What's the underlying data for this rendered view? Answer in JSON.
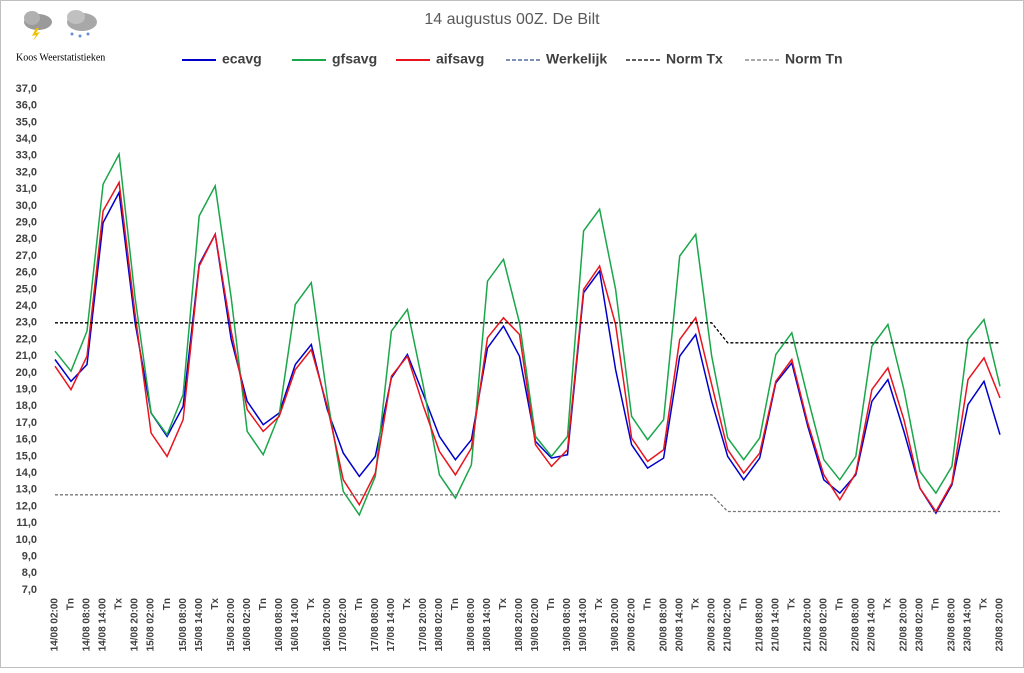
{
  "brand": "Koos Weerstatistieken",
  "chart_data": {
    "type": "line",
    "title": "14 augustus 00Z. De Bilt",
    "categories": [
      "14/08 02:00",
      "Tn",
      "14/08 08:00",
      "14/08 14:00",
      "Tx",
      "14/08 20:00",
      "15/08 02:00",
      "Tn",
      "15/08 08:00",
      "15/08 14:00",
      "Tx",
      "15/08 20:00",
      "16/08 02:00",
      "Tn",
      "16/08 08:00",
      "16/08 14:00",
      "Tx",
      "16/08 20:00",
      "17/08 02:00",
      "Tn",
      "17/08 08:00",
      "17/08 14:00",
      "Tx",
      "17/08 20:00",
      "18/08 02:00",
      "Tn",
      "18/08 08:00",
      "18/08 14:00",
      "Tx",
      "18/08 20:00",
      "19/08 02:00",
      "Tn",
      "19/08 08:00",
      "19/08 14:00",
      "Tx",
      "19/08 20:00",
      "20/08 02:00",
      "Tn",
      "20/08 08:00",
      "20/08 14:00",
      "Tx",
      "20/08 20:00",
      "21/08 02:00",
      "Tn",
      "21/08 08:00",
      "21/08 14:00",
      "Tx",
      "21/08 20:00",
      "22/08 02:00",
      "Tn",
      "22/08 08:00",
      "22/08 14:00",
      "Tx",
      "22/08 20:00",
      "23/08 02:00",
      "Tn",
      "23/08 08:00",
      "23/08 14:00",
      "Tx",
      "23/08 20:00"
    ],
    "series": [
      {
        "name": "ecavg",
        "color": "#0000cc",
        "dashed": false,
        "values": [
          20.8,
          19.5,
          20.5,
          29.0,
          30.8,
          23.0,
          17.6,
          16.2,
          18.0,
          26.5,
          28.3,
          22.0,
          18.3,
          16.9,
          17.6,
          20.5,
          21.7,
          17.8,
          15.2,
          13.8,
          15.0,
          19.7,
          21.1,
          18.7,
          16.2,
          14.8,
          16.0,
          21.5,
          22.8,
          21.0,
          15.9,
          14.9,
          15.1,
          24.8,
          26.1,
          20.2,
          15.7,
          14.3,
          14.9,
          21.0,
          22.3,
          18.3,
          15.0,
          13.6,
          14.9,
          19.4,
          20.6,
          16.8,
          13.6,
          12.8,
          13.9,
          18.3,
          19.6,
          16.5,
          13.1,
          11.6,
          13.3,
          18.1,
          19.5,
          16.3
        ]
      },
      {
        "name": "gfsavg",
        "color": "#1aa64a",
        "dashed": false,
        "values": [
          21.3,
          20.1,
          22.5,
          31.3,
          33.1,
          24.5,
          17.6,
          16.3,
          18.7,
          29.4,
          31.2,
          24.5,
          16.5,
          15.1,
          17.5,
          24.1,
          25.4,
          18.5,
          12.9,
          11.5,
          13.8,
          22.5,
          23.8,
          19.2,
          13.9,
          12.5,
          14.5,
          25.5,
          26.8,
          23.0,
          16.2,
          15.0,
          16.2,
          28.5,
          29.8,
          25.0,
          17.4,
          16.0,
          17.2,
          27.0,
          28.3,
          21.0,
          16.1,
          14.8,
          16.1,
          21.1,
          22.4,
          18.5,
          14.8,
          13.6,
          15.0,
          21.6,
          22.9,
          19.0,
          14.1,
          12.8,
          14.4,
          22.0,
          23.2,
          19.2
        ]
      },
      {
        "name": "aifsavg",
        "color": "#e8141e",
        "dashed": false,
        "values": [
          20.4,
          19.0,
          21.0,
          29.7,
          31.4,
          23.5,
          16.4,
          15.0,
          17.2,
          26.4,
          28.3,
          22.5,
          17.8,
          16.5,
          17.4,
          20.2,
          21.4,
          18.0,
          13.6,
          12.1,
          14.0,
          19.8,
          21.0,
          18.0,
          15.3,
          13.9,
          15.5,
          22.1,
          23.3,
          22.3,
          15.7,
          14.4,
          15.4,
          25.0,
          26.4,
          22.9,
          16.1,
          14.7,
          15.4,
          22.0,
          23.3,
          19.3,
          15.4,
          14.0,
          15.2,
          19.5,
          20.8,
          17.0,
          13.9,
          12.4,
          14.0,
          19.0,
          20.3,
          17.2,
          13.1,
          11.7,
          13.4,
          19.6,
          20.9,
          18.5
        ]
      },
      {
        "name": "Werkelijk",
        "color": "#2f4f8f",
        "dashed": true,
        "values": [
          null,
          null,
          null,
          null,
          null,
          null,
          null,
          null,
          null,
          null,
          null,
          null,
          null,
          null,
          null,
          null,
          null,
          null,
          null,
          null,
          null,
          null,
          null,
          null,
          null,
          null,
          null,
          null,
          null,
          null,
          null,
          null,
          null,
          null,
          null,
          null,
          null,
          null,
          null,
          null,
          null,
          null,
          null,
          null,
          null,
          null,
          null,
          null,
          null,
          null,
          null,
          null,
          null,
          null,
          null,
          null,
          null,
          null,
          null,
          null
        ]
      },
      {
        "name": "Norm Tx",
        "color": "#000000",
        "dashed": true,
        "values": [
          23.0,
          23.0,
          23.0,
          23.0,
          23.0,
          23.0,
          23.0,
          23.0,
          23.0,
          23.0,
          23.0,
          23.0,
          23.0,
          23.0,
          23.0,
          23.0,
          23.0,
          23.0,
          23.0,
          23.0,
          23.0,
          23.0,
          23.0,
          23.0,
          23.0,
          23.0,
          23.0,
          23.0,
          23.0,
          23.0,
          23.0,
          23.0,
          23.0,
          23.0,
          23.0,
          23.0,
          23.0,
          23.0,
          23.0,
          23.0,
          23.0,
          23.0,
          21.8,
          21.8,
          21.8,
          21.8,
          21.8,
          21.8,
          21.8,
          21.8,
          21.8,
          21.8,
          21.8,
          21.8,
          21.8,
          21.8,
          21.8,
          21.8,
          21.8,
          21.8
        ]
      },
      {
        "name": "Norm Tn",
        "color": "#777777",
        "dashed": true,
        "values": [
          12.7,
          12.7,
          12.7,
          12.7,
          12.7,
          12.7,
          12.7,
          12.7,
          12.7,
          12.7,
          12.7,
          12.7,
          12.7,
          12.7,
          12.7,
          12.7,
          12.7,
          12.7,
          12.7,
          12.7,
          12.7,
          12.7,
          12.7,
          12.7,
          12.7,
          12.7,
          12.7,
          12.7,
          12.7,
          12.7,
          12.7,
          12.7,
          12.7,
          12.7,
          12.7,
          12.7,
          12.7,
          12.7,
          12.7,
          12.7,
          12.7,
          12.7,
          11.7,
          11.7,
          11.7,
          11.7,
          11.7,
          11.7,
          11.7,
          11.7,
          11.7,
          11.7,
          11.7,
          11.7,
          11.7,
          11.7,
          11.7,
          11.7,
          11.7,
          11.7
        ]
      }
    ],
    "ylim": [
      7,
      37
    ],
    "yticks": [
      {
        "value": 7,
        "label": "7,0"
      },
      {
        "value": 8,
        "label": "8,0"
      },
      {
        "value": 9,
        "label": "9,0"
      },
      {
        "value": 10,
        "label": "10,0"
      },
      {
        "value": 11,
        "label": "11,0"
      },
      {
        "value": 12,
        "label": "12,0"
      },
      {
        "value": 13,
        "label": "13,0"
      },
      {
        "value": 14,
        "label": "14,0"
      },
      {
        "value": 15,
        "label": "15,0"
      },
      {
        "value": 16,
        "label": "16,0"
      },
      {
        "value": 17,
        "label": "17,0"
      },
      {
        "value": 18,
        "label": "18,0"
      },
      {
        "value": 19,
        "label": "19,0"
      },
      {
        "value": 20,
        "label": "20,0"
      },
      {
        "value": 21,
        "label": "21,0"
      },
      {
        "value": 22,
        "label": "22,0"
      },
      {
        "value": 23,
        "label": "23,0"
      },
      {
        "value": 24,
        "label": "24,0"
      },
      {
        "value": 25,
        "label": "25,0"
      },
      {
        "value": 26,
        "label": "26,0"
      },
      {
        "value": 27,
        "label": "27,0"
      },
      {
        "value": 28,
        "label": "28,0"
      },
      {
        "value": 29,
        "label": "29,0"
      },
      {
        "value": 30,
        "label": "30,0"
      },
      {
        "value": 31,
        "label": "31,0"
      },
      {
        "value": 32,
        "label": "32,0"
      },
      {
        "value": 33,
        "label": "33,0"
      },
      {
        "value": 34,
        "label": "34,0"
      },
      {
        "value": 35,
        "label": "35,0"
      },
      {
        "value": 36,
        "label": "36,0"
      },
      {
        "value": 37,
        "label": "37,0"
      }
    ],
    "grid": false,
    "legend": "top"
  }
}
